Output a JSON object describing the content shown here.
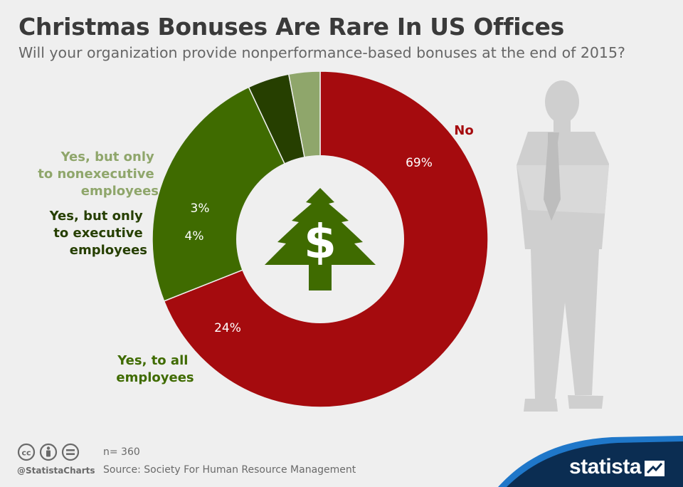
{
  "header": {
    "title": "Christmas Bonuses Are Rare In US Offices",
    "subtitle": "Will your organization provide nonperformance-based bonuses at the end of 2015?"
  },
  "chart_data": {
    "type": "pie",
    "variant": "donut",
    "title": "Christmas Bonuses Are Rare In US Offices",
    "subtitle": "Will your organization provide nonperformance-based bonuses at the end of 2015?",
    "slices": [
      {
        "label": "No",
        "value": 69,
        "display": "69%",
        "color": "#a50b0e",
        "label_color": "#a50b0e"
      },
      {
        "label": "Yes, to all employees",
        "value": 24,
        "display": "24%",
        "color": "#3f6b00",
        "label_color": "#3f6b00"
      },
      {
        "label": "Yes, but only to executive employees",
        "value": 4,
        "display": "4%",
        "color": "#263f00",
        "label_color": "#263f00"
      },
      {
        "label": "Yes, but only to nonexecutive employees",
        "value": 3,
        "display": "3%",
        "color": "#8fa66b",
        "label_color": "#8fa66b"
      }
    ],
    "center_icon": "dollar-christmas-tree-icon"
  },
  "footer": {
    "sample": "n= 360",
    "source": "Source: Society For Human Resource Management",
    "handle": "@StatistaCharts",
    "brand": "statista"
  },
  "icons": [
    "cc-icon",
    "attribution-icon",
    "no-derivatives-icon",
    "dollar-christmas-tree-icon",
    "businessman-silhouette-icon",
    "statista-logo-icon"
  ]
}
